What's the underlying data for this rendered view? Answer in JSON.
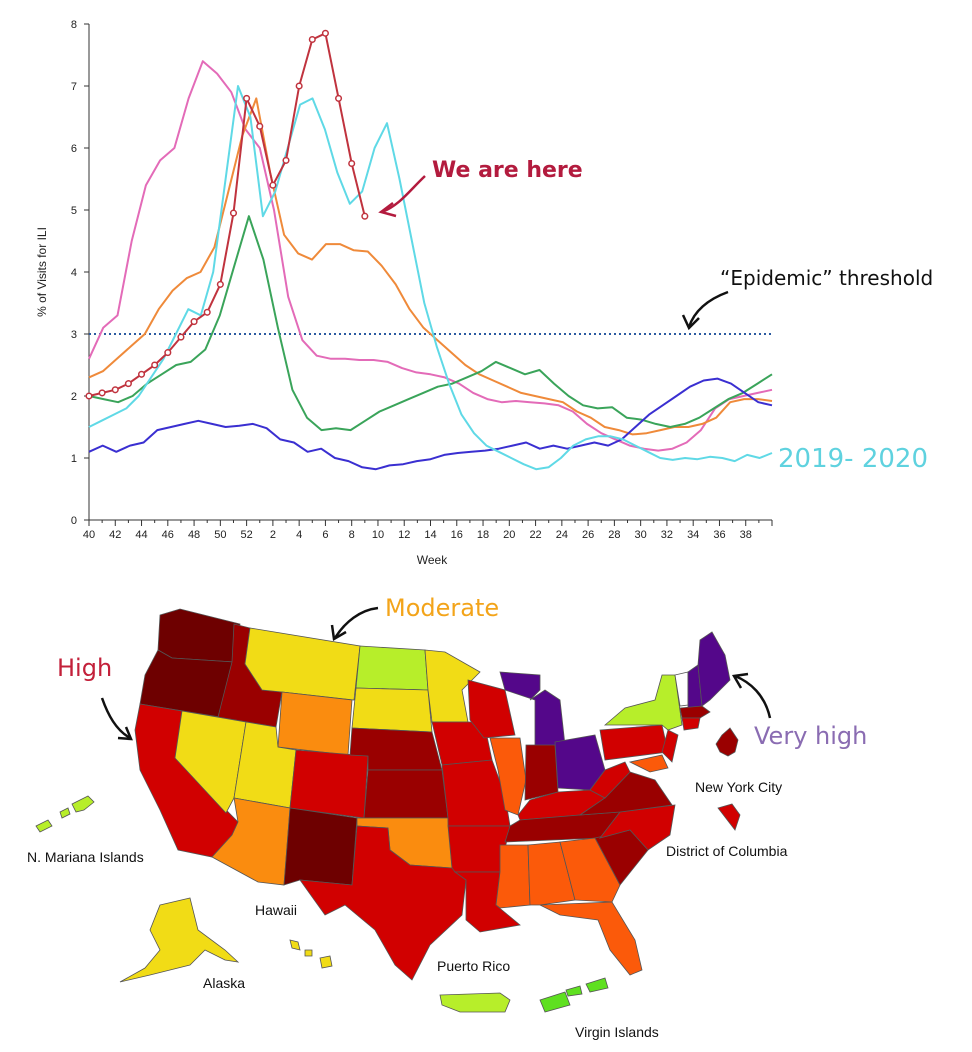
{
  "chart_data": {
    "type": "line",
    "xlabel": "Week",
    "ylabel": "% of Visits for ILI",
    "ylim": [
      0,
      8
    ],
    "yticks": [
      "0",
      "1",
      "2",
      "3",
      "4",
      "5",
      "6",
      "7",
      "8"
    ],
    "xtick_labels": [
      "40",
      "42",
      "44",
      "46",
      "48",
      "50",
      "52",
      "2",
      "4",
      "6",
      "8",
      "10",
      "12",
      "14",
      "16",
      "18",
      "20",
      "22",
      "24",
      "26",
      "28",
      "30",
      "32",
      "34",
      "36",
      "38"
    ],
    "threshold": {
      "value": 3.0,
      "color": "#2b5aa0",
      "style": "dotted"
    },
    "series": [
      {
        "color": "#e36bb8",
        "values": [
          2.6,
          3.1,
          3.3,
          4.5,
          5.4,
          5.8,
          6.0,
          6.8,
          7.4,
          7.2,
          6.9,
          6.3,
          6.0,
          5.0,
          3.6,
          2.9,
          2.65,
          2.6,
          2.6,
          2.58,
          2.58,
          2.55,
          2.45,
          2.38,
          2.35,
          2.3,
          2.2,
          2.05,
          1.95,
          1.9,
          1.92,
          1.9,
          1.88,
          1.85,
          1.75,
          1.55,
          1.4,
          1.3,
          1.2,
          1.15,
          1.12,
          1.15,
          1.25,
          1.45,
          1.8,
          1.95,
          2.0,
          2.05,
          2.1
        ]
      },
      {
        "color": "#ef8a3a",
        "values": [
          2.3,
          2.4,
          2.6,
          2.8,
          3.0,
          3.4,
          3.7,
          3.9,
          4.0,
          4.4,
          5.3,
          6.2,
          6.8,
          5.6,
          4.6,
          4.3,
          4.2,
          4.45,
          4.45,
          4.35,
          4.33,
          4.1,
          3.8,
          3.4,
          3.1,
          2.9,
          2.7,
          2.5,
          2.35,
          2.25,
          2.15,
          2.05,
          2.0,
          1.95,
          1.9,
          1.75,
          1.65,
          1.5,
          1.45,
          1.38,
          1.4,
          1.45,
          1.5,
          1.5,
          1.55,
          1.65,
          1.9,
          1.95,
          1.95,
          1.92
        ]
      },
      {
        "color": "#3aa45a",
        "values": [
          2.0,
          1.95,
          1.9,
          2.0,
          2.2,
          2.35,
          2.5,
          2.55,
          2.75,
          3.3,
          4.1,
          4.9,
          4.2,
          3.1,
          2.1,
          1.65,
          1.45,
          1.48,
          1.45,
          1.6,
          1.75,
          1.85,
          1.95,
          2.05,
          2.15,
          2.2,
          2.3,
          2.4,
          2.55,
          2.45,
          2.35,
          2.42,
          2.2,
          2.0,
          1.85,
          1.8,
          1.82,
          1.65,
          1.62,
          1.55,
          1.5,
          1.55,
          1.65,
          1.8,
          1.95,
          2.05,
          2.2,
          2.35
        ]
      },
      {
        "color": "#3a2fd1",
        "values": [
          1.1,
          1.2,
          1.1,
          1.2,
          1.25,
          1.45,
          1.5,
          1.55,
          1.6,
          1.55,
          1.5,
          1.52,
          1.55,
          1.48,
          1.3,
          1.25,
          1.1,
          1.15,
          1.0,
          0.95,
          0.85,
          0.82,
          0.88,
          0.9,
          0.95,
          0.98,
          1.05,
          1.08,
          1.1,
          1.12,
          1.15,
          1.2,
          1.25,
          1.15,
          1.2,
          1.15,
          1.2,
          1.25,
          1.2,
          1.3,
          1.5,
          1.7,
          1.85,
          2.0,
          2.15,
          2.25,
          2.28,
          2.2,
          2.05,
          1.9,
          1.85
        ]
      },
      {
        "name": "2019- 2020",
        "color": "#5fd9e6",
        "values": [
          1.5,
          1.6,
          1.7,
          1.8,
          2.0,
          2.3,
          2.6,
          3.0,
          3.4,
          3.3,
          4.0,
          5.5,
          7.0,
          6.5,
          4.9,
          5.3,
          6.0,
          6.7,
          6.8,
          6.3,
          5.6,
          5.1,
          5.3,
          6.0,
          6.4,
          5.5,
          4.5,
          3.5,
          2.8,
          2.2,
          1.7,
          1.4,
          1.2,
          1.1,
          1.0,
          0.9,
          0.82,
          0.85,
          1.0,
          1.2,
          1.3,
          1.35,
          1.35,
          1.3,
          1.2,
          1.1,
          1.0,
          0.97,
          1.0,
          0.98,
          1.02,
          1.0,
          0.95,
          1.05,
          1.0,
          1.08
        ]
      },
      {
        "color": "#c0333e",
        "markers": true,
        "values": [
          2.0,
          2.05,
          2.1,
          2.2,
          2.35,
          2.5,
          2.7,
          2.95,
          3.2,
          3.35,
          3.8,
          4.95,
          6.8,
          6.35,
          5.4,
          5.8,
          7.0,
          7.75,
          7.85,
          6.8,
          5.75,
          4.9
        ]
      }
    ]
  },
  "annotations": {
    "we_are_here": "We are here",
    "epidemic_threshold": "“Epidemic” threshold",
    "season_label": "2019- 2020",
    "moderate": "Moderate",
    "high": "High",
    "very_high": "Very high"
  },
  "map": {
    "labels": {
      "n_mariana": "N. Mariana Islands",
      "hawaii": "Hawaii",
      "alaska": "Alaska",
      "puerto_rico": "Puerto Rico",
      "virgin_islands": "Virgin Islands",
      "nyc": "New York City",
      "dc": "District of Columbia"
    },
    "level_colors": {
      "minimal_green": "#5fe020",
      "low_green": "#b7ee2a",
      "moderate_yellow": "#f1dc16",
      "moderate_orange": "#fa8c0f",
      "high_orange": "#fb5a0a",
      "high_red": "#d10000",
      "very_high_darkred": "#9a0000",
      "very_high_maroon": "#6e0000",
      "very_high_purple": "#54078a"
    },
    "annotation_colors": {
      "we_are_here": "#b31b3e",
      "moderate": "#f3a41a",
      "high": "#c3203a",
      "very_high": "#8a6cb2",
      "season": "#5fd2df"
    }
  }
}
